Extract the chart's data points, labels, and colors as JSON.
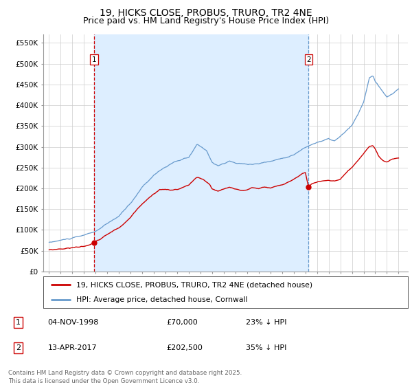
{
  "title": "19, HICKS CLOSE, PROBUS, TRURO, TR2 4NE",
  "subtitle": "Price paid vs. HM Land Registry's House Price Index (HPI)",
  "ylabel_ticks": [
    "£0",
    "£50K",
    "£100K",
    "£150K",
    "£200K",
    "£250K",
    "£300K",
    "£350K",
    "£400K",
    "£450K",
    "£500K",
    "£550K"
  ],
  "ytick_values": [
    0,
    50000,
    100000,
    150000,
    200000,
    250000,
    300000,
    350000,
    400000,
    450000,
    500000,
    550000
  ],
  "ylim": [
    0,
    570000
  ],
  "xlim_start": 1994.5,
  "xlim_end": 2025.8,
  "sale1_x": 1998.84,
  "sale1_y": 70000,
  "sale1_label": "1",
  "sale2_x": 2017.28,
  "sale2_y": 202500,
  "sale2_label": "2",
  "vline1_x": 1998.84,
  "vline1_color": "#cc0000",
  "vline2_x": 2017.28,
  "vline2_color": "#6699cc",
  "hpi_color": "#6699cc",
  "price_color": "#cc0000",
  "background_color": "#ffffff",
  "grid_color": "#cccccc",
  "shade_color": "#ddeeff",
  "legend_entry1": "19, HICKS CLOSE, PROBUS, TRURO, TR2 4NE (detached house)",
  "legend_entry2": "HPI: Average price, detached house, Cornwall",
  "annotation1_date": "04-NOV-1998",
  "annotation1_price": "£70,000",
  "annotation1_hpi": "23% ↓ HPI",
  "annotation2_date": "13-APR-2017",
  "annotation2_price": "£202,500",
  "annotation2_hpi": "35% ↓ HPI",
  "footer": "Contains HM Land Registry data © Crown copyright and database right 2025.\nThis data is licensed under the Open Government Licence v3.0.",
  "title_fontsize": 10,
  "subtitle_fontsize": 9,
  "tick_fontsize": 7.5,
  "label_fontsize": 8
}
